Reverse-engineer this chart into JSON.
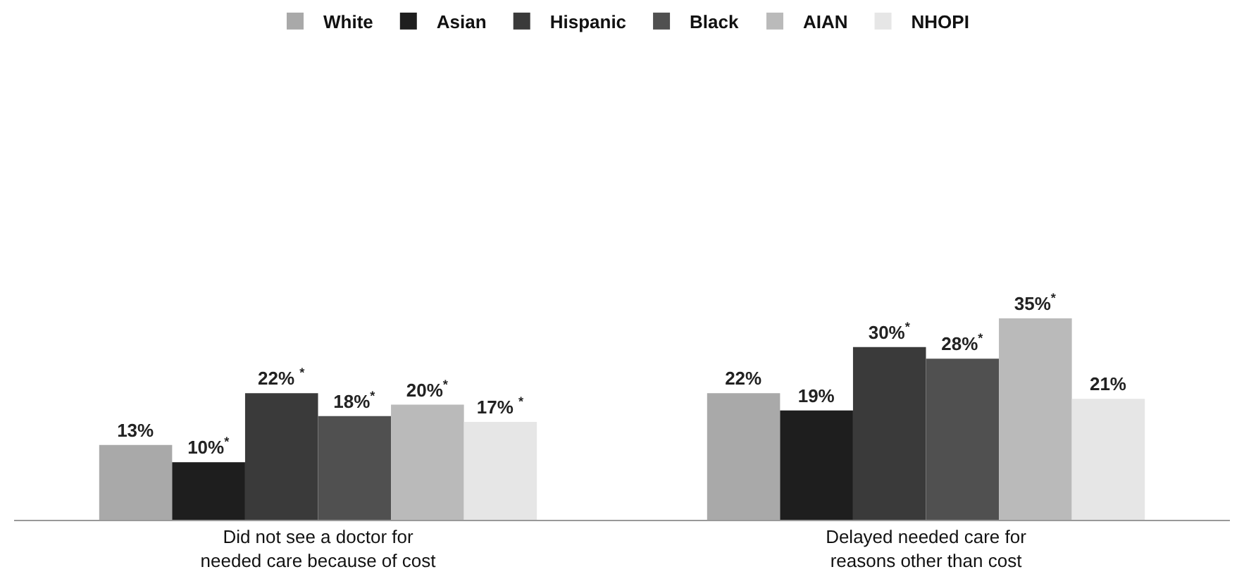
{
  "chart_data": {
    "type": "bar",
    "categories": [
      "Did not see a doctor for\nneeded care because of cost",
      "Delayed needed care for\nreasons other than cost"
    ],
    "series": [
      {
        "name": "White",
        "color": "#a9a9a9",
        "values": [
          13,
          22
        ],
        "value_labels": [
          "13%",
          "22%"
        ]
      },
      {
        "name": "Asian",
        "color": "#1e1e1e",
        "values": [
          10,
          19
        ],
        "value_labels": [
          "10%$^{*}$",
          "19%"
        ]
      },
      {
        "name": "Hispanic",
        "color": "#3a3a3a",
        "values": [
          22,
          30
        ],
        "value_labels": [
          "22% $^{*}$",
          "30%$^{*}$"
        ]
      },
      {
        "name": "Black",
        "color": "#505050",
        "values": [
          18,
          28
        ],
        "value_labels": [
          "18%$^{*}$",
          "28%$^{*}$"
        ]
      },
      {
        "name": "AIAN",
        "color": "#bababa",
        "values": [
          20,
          35
        ],
        "value_labels": [
          "20%$^{*}$",
          "35%$^{*}$"
        ]
      },
      {
        "name": "NHOPI",
        "color": "#e6e6e6",
        "values": [
          17,
          21
        ],
        "value_labels": [
          "17% $^{*}$",
          "21%"
        ]
      }
    ],
    "legend": "top",
    "tick_labels": "x"
  }
}
